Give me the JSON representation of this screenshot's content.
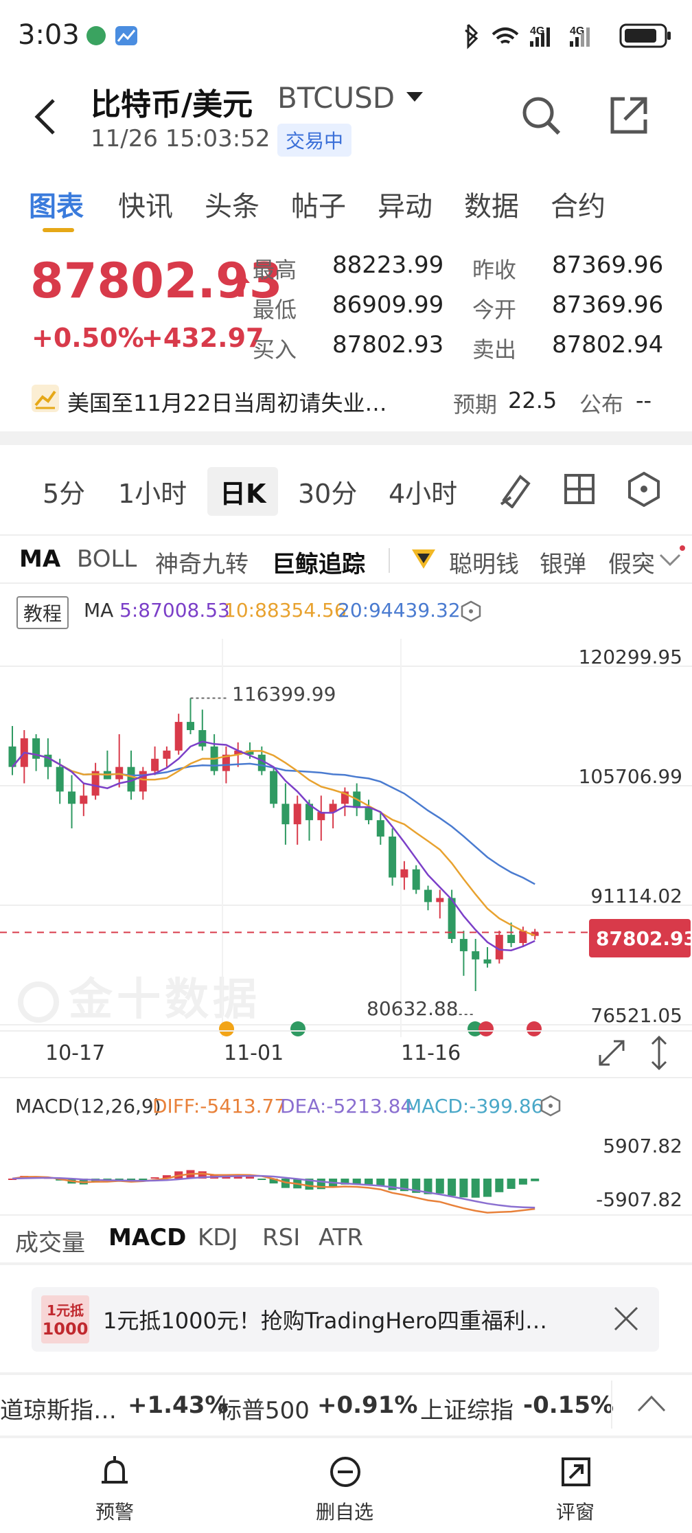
{
  "status_bar": {
    "time": "3:03"
  },
  "header": {
    "title": "比特币/美元",
    "symbol": "BTCUSD",
    "datetime": "11/26 15:03:52",
    "badge": "交易中"
  },
  "tabs": [
    "图表",
    "快讯",
    "头条",
    "帖子",
    "异动",
    "数据",
    "合约"
  ],
  "quote": {
    "price": "87802.93",
    "change_pct": "+0.50%",
    "change_abs": "+432.97",
    "high_label": "最高",
    "high": "88223.99",
    "low_label": "最低",
    "low": "86909.99",
    "bid_label": "买入",
    "bid": "87802.93",
    "prev_close_label": "昨收",
    "prev_close": "87369.96",
    "open_label": "今开",
    "open": "87369.96",
    "ask_label": "卖出",
    "ask": "87802.94"
  },
  "event": {
    "text": "美国至11月22日当周初请失业…",
    "expected_label": "预期",
    "expected": "22.5",
    "publish_label": "公布",
    "publish": "--"
  },
  "periods": [
    "5分",
    "1小时",
    "日K",
    "30分",
    "4小时"
  ],
  "indicators": [
    "MA",
    "BOLL",
    "神奇九转",
    "巨鲸追踪",
    "聪明钱",
    "银弹",
    "假突"
  ],
  "chart_overlay": {
    "tutorial": "教程",
    "ma_label": "MA",
    "ma5": "5:87008.53",
    "ma10": "10:88354.56",
    "ma20": "20:94439.32",
    "watermark": "金十数据"
  },
  "chart_data": {
    "type": "candlestick",
    "y_ticks": [
      "120299.95",
      "105706.99",
      "91114.02",
      "76521.05"
    ],
    "ylim": [
      76521.05,
      120299.95
    ],
    "x_ticks": [
      "10-17",
      "11-01",
      "11-16"
    ],
    "high_marker": "116399.99",
    "low_marker": "80632.88",
    "current_price": "87802.93",
    "candles": [
      {
        "o": 110500,
        "h": 113000,
        "l": 107000,
        "c": 108000
      },
      {
        "o": 108000,
        "h": 112500,
        "l": 106000,
        "c": 111500
      },
      {
        "o": 111500,
        "h": 112000,
        "l": 107500,
        "c": 109000
      },
      {
        "o": 109500,
        "h": 111500,
        "l": 106500,
        "c": 108000
      },
      {
        "o": 108000,
        "h": 109000,
        "l": 103500,
        "c": 105000
      },
      {
        "o": 105000,
        "h": 107000,
        "l": 100500,
        "c": 103500
      },
      {
        "o": 103500,
        "h": 106000,
        "l": 102000,
        "c": 104500
      },
      {
        "o": 104500,
        "h": 108500,
        "l": 104000,
        "c": 107500
      },
      {
        "o": 107500,
        "h": 110000,
        "l": 106500,
        "c": 106500
      },
      {
        "o": 106500,
        "h": 112000,
        "l": 105500,
        "c": 108000
      },
      {
        "o": 108000,
        "h": 110000,
        "l": 104000,
        "c": 105000
      },
      {
        "o": 105000,
        "h": 108000,
        "l": 104000,
        "c": 107500
      },
      {
        "o": 107500,
        "h": 110500,
        "l": 107000,
        "c": 109000
      },
      {
        "o": 109000,
        "h": 110500,
        "l": 108000,
        "c": 110000
      },
      {
        "o": 110000,
        "h": 114500,
        "l": 109500,
        "c": 113500
      },
      {
        "o": 113500,
        "h": 116400,
        "l": 112000,
        "c": 112500
      },
      {
        "o": 112500,
        "h": 115000,
        "l": 110000,
        "c": 110500
      },
      {
        "o": 110500,
        "h": 112000,
        "l": 107000,
        "c": 107500
      },
      {
        "o": 107500,
        "h": 110500,
        "l": 106000,
        "c": 109500
      },
      {
        "o": 109500,
        "h": 111000,
        "l": 108000,
        "c": 110000
      },
      {
        "o": 110000,
        "h": 111000,
        "l": 109000,
        "c": 109500
      },
      {
        "o": 109500,
        "h": 110500,
        "l": 107000,
        "c": 107500
      },
      {
        "o": 107500,
        "h": 108000,
        "l": 103000,
        "c": 103500
      },
      {
        "o": 103500,
        "h": 106000,
        "l": 98500,
        "c": 101000
      },
      {
        "o": 101000,
        "h": 104500,
        "l": 98500,
        "c": 103500
      },
      {
        "o": 103500,
        "h": 104000,
        "l": 99000,
        "c": 101500
      },
      {
        "o": 101500,
        "h": 104500,
        "l": 99000,
        "c": 102500
      },
      {
        "o": 102500,
        "h": 104000,
        "l": 100500,
        "c": 103500
      },
      {
        "o": 103500,
        "h": 105500,
        "l": 102000,
        "c": 105000
      },
      {
        "o": 105000,
        "h": 106000,
        "l": 102000,
        "c": 103000
      },
      {
        "o": 103000,
        "h": 104000,
        "l": 101000,
        "c": 101500
      },
      {
        "o": 101500,
        "h": 102500,
        "l": 98500,
        "c": 99500
      },
      {
        "o": 99500,
        "h": 100500,
        "l": 93500,
        "c": 94500
      },
      {
        "o": 94500,
        "h": 96500,
        "l": 93000,
        "c": 95500
      },
      {
        "o": 95500,
        "h": 96000,
        "l": 92500,
        "c": 93000
      },
      {
        "o": 93000,
        "h": 93500,
        "l": 90500,
        "c": 91500
      },
      {
        "o": 91500,
        "h": 93000,
        "l": 89500,
        "c": 92000
      },
      {
        "o": 92000,
        "h": 93000,
        "l": 86500,
        "c": 87000
      },
      {
        "o": 87000,
        "h": 88000,
        "l": 82500,
        "c": 85500
      },
      {
        "o": 85500,
        "h": 87000,
        "l": 80633,
        "c": 84500
      },
      {
        "o": 84500,
        "h": 86000,
        "l": 83500,
        "c": 84000
      },
      {
        "o": 84500,
        "h": 88000,
        "l": 84000,
        "c": 87500
      },
      {
        "o": 87500,
        "h": 89000,
        "l": 86000,
        "c": 86500
      },
      {
        "o": 86500,
        "h": 88500,
        "l": 86000,
        "c": 88000
      },
      {
        "o": 87370,
        "h": 88224,
        "l": 86910,
        "c": 87803
      }
    ]
  },
  "macd": {
    "label": "MACD(12,26,9)",
    "diff": "DIFF:-5413.77",
    "dea": "DEA:-5213.84",
    "macd": "MACD:-399.86",
    "y_top": "5907.82",
    "y_bottom": "-5907.82"
  },
  "sub_tabs": [
    "成交量",
    "MACD",
    "KDJ",
    "RSI",
    "ATR"
  ],
  "banner": {
    "badge_top": "1元抵",
    "badge_bottom": "1000",
    "text": "1元抵1000元！抢购TradingHero四重福利…"
  },
  "tickers": [
    {
      "name": "道琼斯指…",
      "change": "+1.43%"
    },
    {
      "name": "标普500",
      "change": "+0.91%"
    },
    {
      "name": "上证综指",
      "change": "-0.15%"
    }
  ],
  "bottom_nav": [
    "预警",
    "删自选",
    "评窗"
  ],
  "colors": {
    "up": "#d83a4a",
    "down": "#2f9a62",
    "accent": "#3a7bdc",
    "ma5": "#7b3fc8",
    "ma10": "#e8a22f",
    "ma20": "#4a7bd0"
  }
}
